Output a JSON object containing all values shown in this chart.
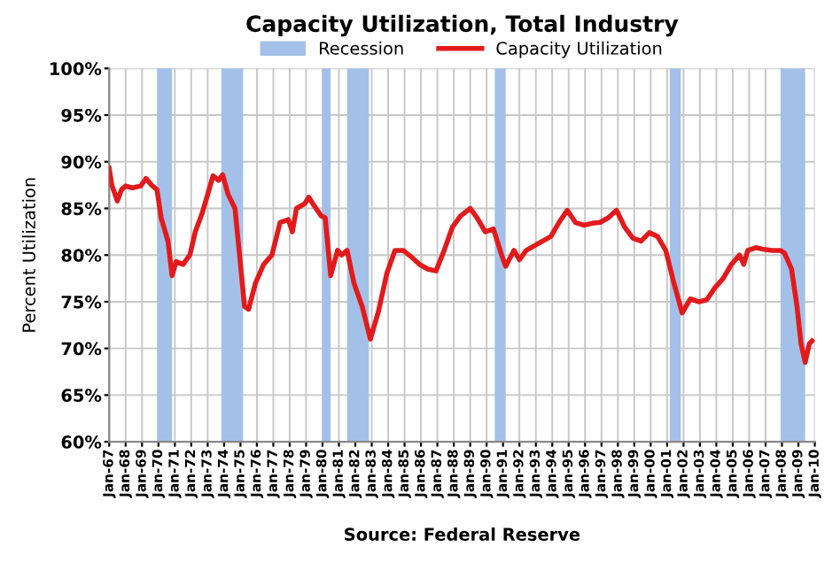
{
  "chart_data": {
    "type": "line",
    "title": "Capacity Utilization, Total Industry",
    "ylabel": "Percent Utilization",
    "annotations": [
      "Source: Federal Reserve"
    ],
    "x": [
      "1967-01",
      "1967-03",
      "1967-07",
      "1967-10",
      "1968-01",
      "1968-06",
      "1968-12",
      "1969-04",
      "1969-08",
      "1969-12",
      "1970-03",
      "1970-08",
      "1970-11",
      "1971-02",
      "1971-07",
      "1971-12",
      "1972-04",
      "1972-09",
      "1973-01",
      "1973-05",
      "1973-09",
      "1973-12",
      "1974-04",
      "1974-09",
      "1975-01",
      "1975-04",
      "1975-07",
      "1975-12",
      "1976-06",
      "1976-12",
      "1977-06",
      "1977-12",
      "1978-03",
      "1978-06",
      "1978-12",
      "1979-03",
      "1979-06",
      "1979-12",
      "1980-03",
      "1980-07",
      "1980-12",
      "1981-03",
      "1981-07",
      "1981-12",
      "1982-06",
      "1982-12",
      "1983-06",
      "1983-12",
      "1984-06",
      "1984-12",
      "1985-06",
      "1985-12",
      "1986-06",
      "1986-12",
      "1987-06",
      "1987-12",
      "1988-06",
      "1989-01",
      "1989-06",
      "1989-12",
      "1990-06",
      "1990-12",
      "1991-03",
      "1991-09",
      "1992-01",
      "1992-06",
      "1992-12",
      "1993-06",
      "1993-12",
      "1994-06",
      "1994-12",
      "1995-06",
      "1995-12",
      "1996-06",
      "1996-12",
      "1997-06",
      "1997-12",
      "1998-06",
      "1998-12",
      "1999-06",
      "1999-12",
      "2000-06",
      "2000-12",
      "2001-06",
      "2001-12",
      "2002-06",
      "2002-12",
      "2003-06",
      "2003-12",
      "2004-06",
      "2004-12",
      "2005-06",
      "2005-09",
      "2005-12",
      "2006-06",
      "2006-12",
      "2007-06",
      "2007-12",
      "2008-03",
      "2008-08",
      "2008-12",
      "2009-03",
      "2009-06",
      "2009-09",
      "2009-11"
    ],
    "series": [
      {
        "name": "Capacity Utilization",
        "color": "#e31a1c",
        "values": [
          89.3,
          87.5,
          85.8,
          87.0,
          87.4,
          87.2,
          87.4,
          88.2,
          87.5,
          87.0,
          84.0,
          81.5,
          77.8,
          79.3,
          79.0,
          80.0,
          82.5,
          84.5,
          86.5,
          88.5,
          88.0,
          88.6,
          86.5,
          85.0,
          79.0,
          74.5,
          74.2,
          77.0,
          79.0,
          80.0,
          83.5,
          83.8,
          82.5,
          85.0,
          85.5,
          86.2,
          85.5,
          84.2,
          84.0,
          77.8,
          80.5,
          80.0,
          80.5,
          77.0,
          74.5,
          71.0,
          74.0,
          78.0,
          80.5,
          80.5,
          79.8,
          79.0,
          78.5,
          78.3,
          80.5,
          83.0,
          84.2,
          85.0,
          84.0,
          82.5,
          82.8,
          80.0,
          78.8,
          80.5,
          79.5,
          80.5,
          81.0,
          81.5,
          82.0,
          83.5,
          84.8,
          83.5,
          83.2,
          83.4,
          83.5,
          84.0,
          84.8,
          83.0,
          81.8,
          81.5,
          82.4,
          82.0,
          80.5,
          77.0,
          73.8,
          75.3,
          75.0,
          75.2,
          76.5,
          77.5,
          79.0,
          80.0,
          79.0,
          80.5,
          80.8,
          80.6,
          80.5,
          80.5,
          80.2,
          78.5,
          74.5,
          70.5,
          68.5,
          70.5,
          70.8
        ]
      }
    ],
    "bands": [
      {
        "axis": "x",
        "from": "1969-12",
        "to": "1970-11",
        "label": "Recession",
        "color": "#a3c1e8"
      },
      {
        "axis": "x",
        "from": "1973-11",
        "to": "1975-03",
        "color": "#a3c1e8"
      },
      {
        "axis": "x",
        "from": "1980-01",
        "to": "1980-07",
        "color": "#a3c1e8"
      },
      {
        "axis": "x",
        "from": "1981-07",
        "to": "1982-11",
        "color": "#a3c1e8"
      },
      {
        "axis": "x",
        "from": "1990-07",
        "to": "1991-03",
        "color": "#a3c1e8"
      },
      {
        "axis": "x",
        "from": "2001-03",
        "to": "2001-11",
        "color": "#a3c1e8"
      },
      {
        "axis": "x",
        "from": "2007-12",
        "to": "2009-06",
        "color": "#a3c1e8"
      }
    ],
    "ylim": [
      60,
      100
    ],
    "yticks": [
      {
        "value": 60,
        "label": "60%"
      },
      {
        "value": 65,
        "label": "65%"
      },
      {
        "value": 70,
        "label": "70%"
      },
      {
        "value": 75,
        "label": "75%"
      },
      {
        "value": 80,
        "label": "80%"
      },
      {
        "value": 85,
        "label": "85%"
      },
      {
        "value": 90,
        "label": "90%"
      },
      {
        "value": 95,
        "label": "95%"
      },
      {
        "value": 100,
        "label": "100%"
      }
    ],
    "xlim": [
      "1967-01",
      "2010-01"
    ],
    "xticks": [
      {
        "value": "1967-01",
        "label": "Jan-67"
      },
      {
        "value": "1968-01",
        "label": "Jan-68"
      },
      {
        "value": "1969-01",
        "label": "Jan-69"
      },
      {
        "value": "1970-01",
        "label": "Jan-70"
      },
      {
        "value": "1971-01",
        "label": "Jan-71"
      },
      {
        "value": "1972-01",
        "label": "Jan-72"
      },
      {
        "value": "1973-01",
        "label": "Jan-73"
      },
      {
        "value": "1974-01",
        "label": "Jan-74"
      },
      {
        "value": "1975-01",
        "label": "Jan-75"
      },
      {
        "value": "1976-01",
        "label": "Jan-76"
      },
      {
        "value": "1977-01",
        "label": "Jan-77"
      },
      {
        "value": "1978-01",
        "label": "Jan-78"
      },
      {
        "value": "1979-01",
        "label": "Jan-79"
      },
      {
        "value": "1980-01",
        "label": "Jan-80"
      },
      {
        "value": "1981-01",
        "label": "Jan-81"
      },
      {
        "value": "1982-01",
        "label": "Jan-82"
      },
      {
        "value": "1983-01",
        "label": "Jan-83"
      },
      {
        "value": "1984-01",
        "label": "Jan-84"
      },
      {
        "value": "1985-01",
        "label": "Jan-85"
      },
      {
        "value": "1986-01",
        "label": "Jan-86"
      },
      {
        "value": "1987-01",
        "label": "Jan-87"
      },
      {
        "value": "1988-01",
        "label": "Jan-88"
      },
      {
        "value": "1989-01",
        "label": "Jan-89"
      },
      {
        "value": "1990-01",
        "label": "Jan-90"
      },
      {
        "value": "1991-01",
        "label": "Jan-91"
      },
      {
        "value": "1992-01",
        "label": "Jan-92"
      },
      {
        "value": "1993-01",
        "label": "Jan-93"
      },
      {
        "value": "1994-01",
        "label": "Jan-94"
      },
      {
        "value": "1995-01",
        "label": "Jan-95"
      },
      {
        "value": "1996-01",
        "label": "Jan-96"
      },
      {
        "value": "1997-01",
        "label": "Jan-97"
      },
      {
        "value": "1998-01",
        "label": "Jan-98"
      },
      {
        "value": "1999-01",
        "label": "Jan-99"
      },
      {
        "value": "2000-01",
        "label": "Jan-00"
      },
      {
        "value": "2001-01",
        "label": "Jan-01"
      },
      {
        "value": "2002-01",
        "label": "Jan-02"
      },
      {
        "value": "2003-01",
        "label": "Jan-03"
      },
      {
        "value": "2004-01",
        "label": "Jan-04"
      },
      {
        "value": "2005-01",
        "label": "Jan-05"
      },
      {
        "value": "2006-01",
        "label": "Jan-06"
      },
      {
        "value": "2007-01",
        "label": "Jan-07"
      },
      {
        "value": "2008-01",
        "label": "Jan-08"
      },
      {
        "value": "2009-01",
        "label": "Jan-09"
      },
      {
        "value": "2010-01",
        "label": "Jan-10"
      }
    ],
    "grid": true,
    "legend": "top",
    "line_style": "solid",
    "marker": "none"
  }
}
